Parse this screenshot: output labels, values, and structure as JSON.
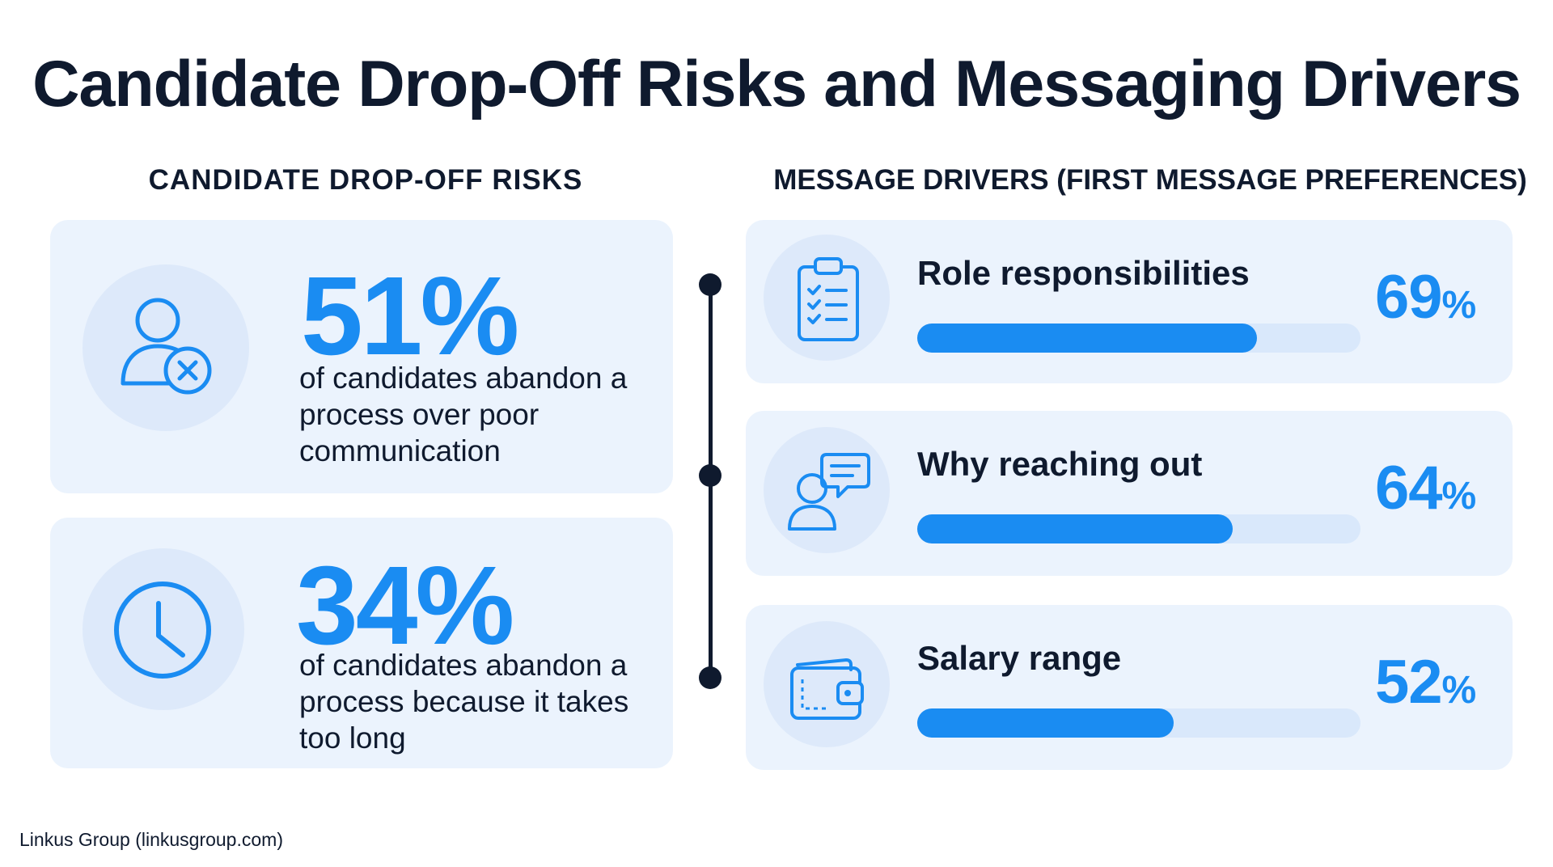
{
  "title": "Candidate Drop-Off Risks and Messaging Drivers",
  "left_section": {
    "heading": "CANDIDATE DROP-OFF RISKS",
    "stats": [
      {
        "icon": "user-x-icon",
        "value": "51%",
        "description": "of candidates abandon a process over poor communication"
      },
      {
        "icon": "clock-icon",
        "value": "34%",
        "description": "of candidates abandon a process because it takes too long"
      }
    ]
  },
  "right_section": {
    "heading": "MESSAGE DRIVERS (FIRST MESSAGE PREFERENCES)",
    "drivers": [
      {
        "icon": "clipboard-checklist-icon",
        "label": "Role responsibilities",
        "value": 69,
        "value_text": "69",
        "unit": "%"
      },
      {
        "icon": "person-chat-icon",
        "label": "Why reaching out",
        "value": 64,
        "value_text": "64",
        "unit": "%"
      },
      {
        "icon": "wallet-icon",
        "label": "Salary range",
        "value": 52,
        "value_text": "52",
        "unit": "%"
      }
    ]
  },
  "chart_data": {
    "type": "bar",
    "categories": [
      "Role responsibilities",
      "Why reaching out",
      "Salary range"
    ],
    "values": [
      69,
      64,
      52
    ],
    "title": "MESSAGE DRIVERS (FIRST MESSAGE PREFERENCES)",
    "xlabel": "",
    "ylabel": "",
    "ylim": [
      0,
      90
    ],
    "orientation": "horizontal"
  },
  "colors": {
    "accent": "#1a8cf2",
    "text": "#0f1a2e",
    "card": "#ebf3fd",
    "track": "#d9e8fb"
  },
  "source": "Linkus Group (linkusgroup.com)"
}
